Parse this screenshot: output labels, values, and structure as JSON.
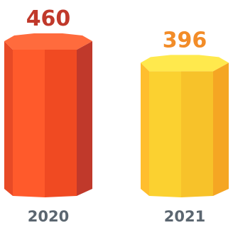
{
  "chart_data": {
    "type": "bar",
    "categories": [
      "2020",
      "2021"
    ],
    "values": [
      460,
      396
    ],
    "value_labels": [
      "460",
      "396"
    ],
    "label_colors": [
      "#c0392b",
      "#f28c28"
    ],
    "bar_colors": [
      {
        "top": "#ff6b3d",
        "front": "#ff5a2b",
        "mid": "#f04a22",
        "left": "#e84a26",
        "right": "#c0392b"
      },
      {
        "top": "#ffe94d",
        "front": "#fbd130",
        "mid": "#f7c22a",
        "left": "#ffbe2e",
        "right": "#f5a623"
      }
    ],
    "title": "",
    "xlabel": "",
    "ylabel": "",
    "grid": false
  }
}
